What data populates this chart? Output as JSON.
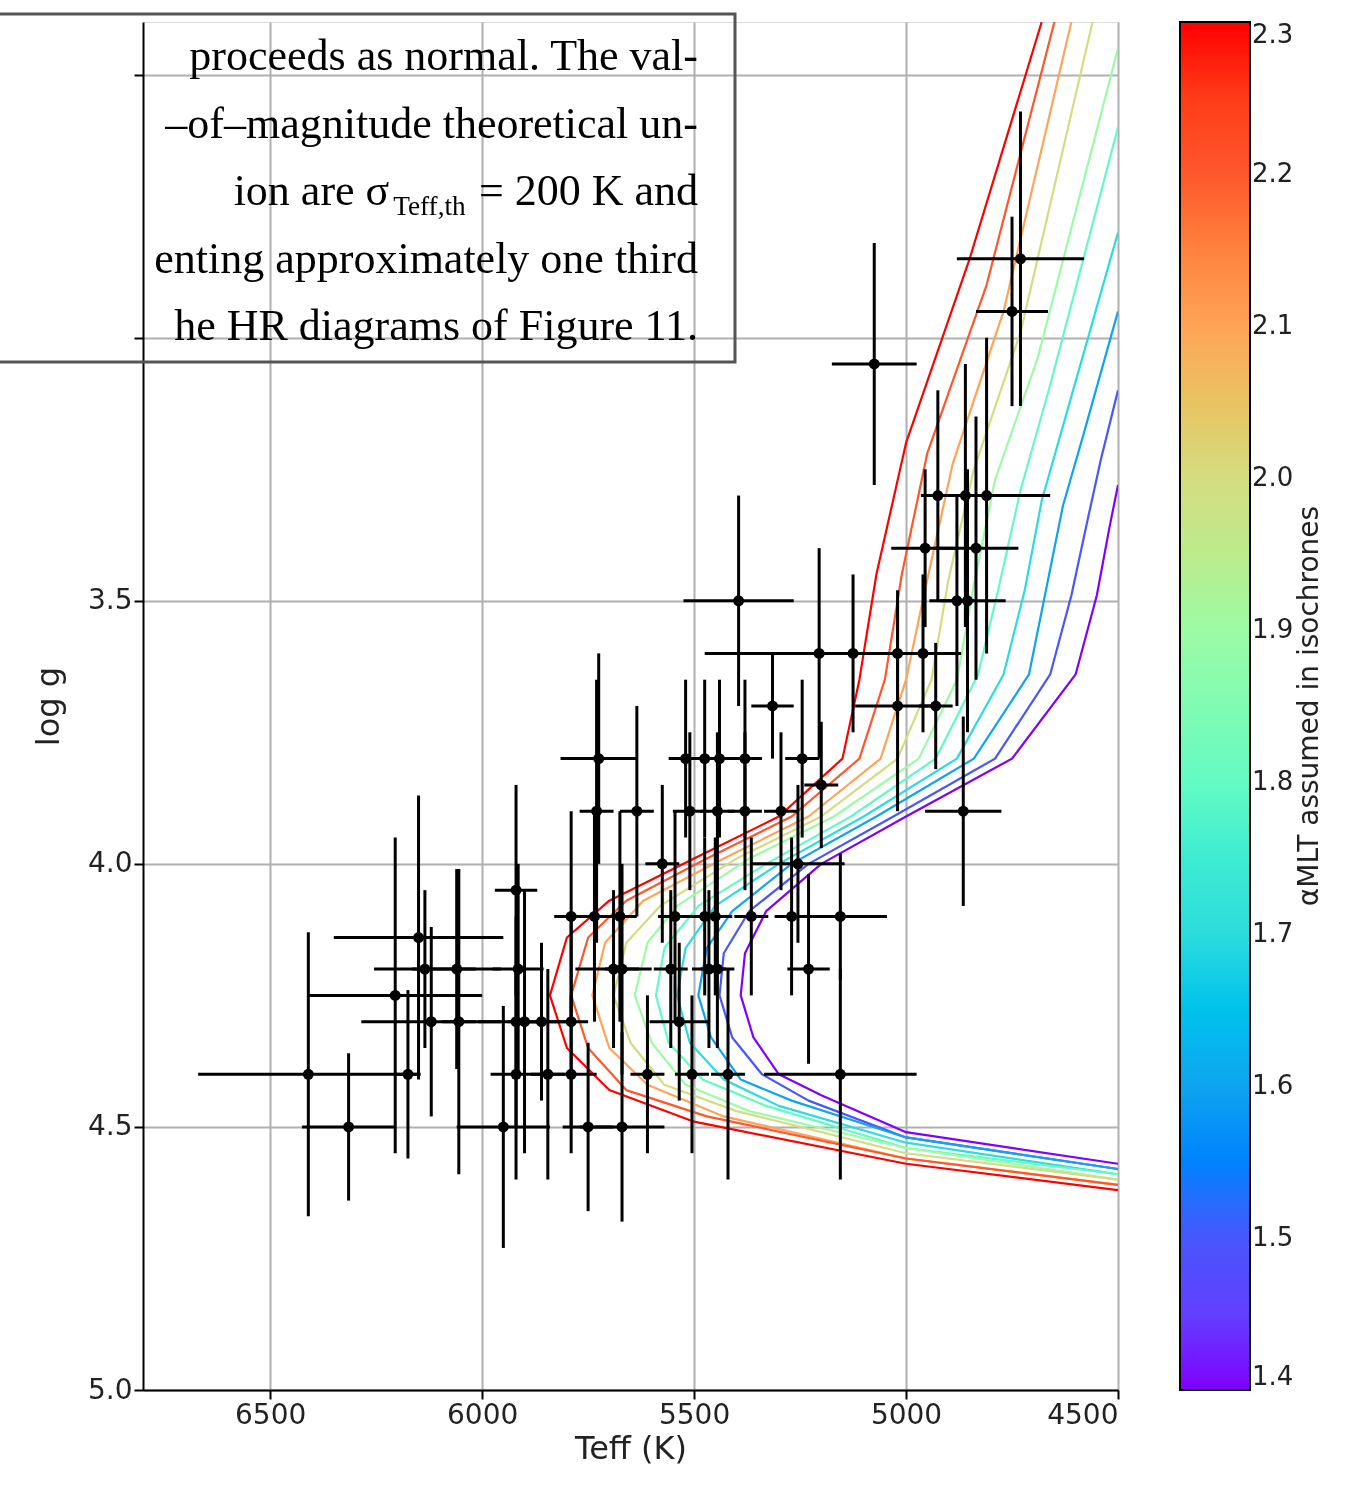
{
  "chart_data": {
    "type": "scatter",
    "xlabel": "Teff (K)",
    "ylabel": "log g",
    "clabel": "αMLT assumed in isochrones",
    "xlim": [
      6800,
      4500
    ],
    "xticks": [
      6500,
      6000,
      5500,
      5000,
      4500
    ],
    "ylim": [
      5.0,
      2.4
    ],
    "yticks": [
      {
        "value": 2.5,
        "label": null
      },
      {
        "value": 3.0,
        "label": null
      },
      3.5,
      {
        "value": 4,
        "label": "4.0"
      },
      4.5,
      {
        "value": 5,
        "label": "5.0"
      }
    ],
    "clim": [
      1.4,
      2.3
    ],
    "cticks": [
      1.4,
      1.5,
      1.6,
      1.7,
      1.8,
      1.9,
      {
        "value": 2,
        "label": "2.0"
      },
      2.1,
      2.2,
      2.3
    ],
    "grid": true,
    "annotations": [
      "proceeds as normal. The val-",
      "–of–magnitude theoretical un-",
      "ion are σ$_{Teff,th}$ = 200 K and",
      "enting approximately one third",
      "he HR diagrams of Figure 11."
    ],
    "series": [
      {
        "type": "line",
        "color": "#8000ff",
        "x": [
          4500,
          5000,
          5200,
          5300,
          5360,
          5390,
          5380,
          5330,
          5200,
          5000,
          4750,
          4600,
          4550,
          4520,
          4500
        ],
        "values": [
          4.57,
          4.51,
          4.44,
          4.4,
          4.33,
          4.25,
          4.17,
          4.09,
          4.0,
          3.91,
          3.8,
          3.64,
          3.49,
          3.36,
          3.28
        ]
      },
      {
        "type": "line",
        "color": "#4757fb",
        "x": [
          4500,
          5000,
          5230,
          5340,
          5410,
          5440,
          5430,
          5370,
          5230,
          5030,
          4790,
          4660,
          4610,
          4570,
          4540,
          4500
        ],
        "values": [
          4.58,
          4.52,
          4.45,
          4.4,
          4.33,
          4.25,
          4.17,
          4.09,
          4.0,
          3.91,
          3.8,
          3.64,
          3.49,
          3.34,
          3.23,
          3.1
        ]
      },
      {
        "type": "line",
        "color": "#0ea4f0",
        "x": [
          4500,
          5000,
          5270,
          5390,
          5460,
          5490,
          5470,
          5410,
          5270,
          5070,
          4840,
          4710,
          4670,
          4630,
          4580,
          4500
        ],
        "values": [
          4.58,
          4.52,
          4.45,
          4.41,
          4.33,
          4.25,
          4.16,
          4.09,
          4.0,
          3.91,
          3.8,
          3.64,
          3.48,
          3.32,
          3.18,
          2.95
        ]
      },
      {
        "type": "line",
        "color": "#2bdcdc",
        "x": [
          4500,
          5000,
          5300,
          5430,
          5510,
          5540,
          5520,
          5450,
          5300,
          5100,
          4880,
          4770,
          4720,
          4680,
          4620,
          4500
        ],
        "values": [
          4.59,
          4.53,
          4.46,
          4.41,
          4.34,
          4.25,
          4.16,
          4.08,
          4.0,
          3.91,
          3.8,
          3.64,
          3.48,
          3.31,
          3.14,
          2.8
        ]
      },
      {
        "type": "line",
        "color": "#63fbc3",
        "x": [
          4500,
          5000,
          5330,
          5480,
          5560,
          5590,
          5570,
          5490,
          5330,
          5130,
          4930,
          4830,
          4780,
          4730,
          4660,
          4500
        ],
        "values": [
          4.59,
          4.54,
          4.46,
          4.41,
          4.34,
          4.25,
          4.16,
          4.08,
          4.0,
          3.91,
          3.8,
          3.64,
          3.47,
          3.29,
          3.09,
          2.6
        ]
      },
      {
        "type": "line",
        "color": "#9cfba4",
        "x": [
          4500,
          5000,
          5370,
          5520,
          5600,
          5640,
          5610,
          5540,
          5370,
          5170,
          4970,
          4880,
          4840,
          4790,
          4690,
          4500
        ],
        "values": [
          4.6,
          4.54,
          4.47,
          4.42,
          4.34,
          4.25,
          4.15,
          4.08,
          3.99,
          3.91,
          3.8,
          3.65,
          3.47,
          3.27,
          3.04,
          2.45
        ]
      },
      {
        "type": "line",
        "color": "#d4dc80",
        "x": [
          4500,
          5000,
          5400,
          5570,
          5650,
          5690,
          5660,
          5580,
          5400,
          5200,
          5020,
          4940,
          4900,
          4840,
          4730,
          4560
        ],
        "values": [
          4.6,
          4.55,
          4.47,
          4.42,
          4.34,
          4.25,
          4.15,
          4.08,
          3.99,
          3.91,
          3.8,
          3.65,
          3.46,
          3.25,
          2.99,
          2.4
        ]
      },
      {
        "type": "line",
        "color": "#ffa457",
        "x": [
          4500,
          5000,
          5430,
          5610,
          5700,
          5740,
          5710,
          5620,
          5430,
          5230,
          5060,
          5000,
          4950,
          4890,
          4770,
          4610
        ],
        "values": [
          4.61,
          4.56,
          4.48,
          4.42,
          4.35,
          4.25,
          4.15,
          4.07,
          3.99,
          3.91,
          3.8,
          3.65,
          3.46,
          3.24,
          2.95,
          2.4
        ]
      },
      {
        "type": "line",
        "color": "#ff572c",
        "x": [
          4500,
          5000,
          5470,
          5660,
          5750,
          5790,
          5750,
          5660,
          5470,
          5270,
          5110,
          5050,
          5010,
          4950,
          4810,
          4650
        ],
        "values": [
          4.61,
          4.56,
          4.48,
          4.43,
          4.35,
          4.25,
          4.14,
          4.07,
          3.99,
          3.91,
          3.8,
          3.65,
          3.45,
          3.22,
          2.9,
          2.4
        ]
      },
      {
        "type": "line",
        "color": "#ff0000",
        "x": [
          4500,
          5000,
          5500,
          5700,
          5800,
          5840,
          5800,
          5700,
          5500,
          5300,
          5150,
          5110,
          5070,
          5000,
          4850,
          4680
        ],
        "values": [
          4.62,
          4.57,
          4.49,
          4.43,
          4.35,
          4.25,
          4.14,
          4.07,
          3.99,
          3.91,
          3.8,
          3.65,
          3.45,
          3.2,
          2.85,
          2.4
        ]
      },
      {
        "type": "scatter",
        "color": "#000000",
        "marker": "circle",
        "x": [
          6410,
          6315,
          6205,
          6175,
          6150,
          6135,
          6120,
          6060,
          6055,
          5920,
          5950,
          5920,
          5915,
          5920,
          5900,
          5860,
          5845,
          5790,
          5790,
          5790,
          5750,
          5670,
          5610,
          5505,
          5420,
          5155,
          5535,
          5690,
          5670,
          5555,
          5465,
          5445,
          5230,
          5735,
          5675,
          5545,
          5475,
          5450,
          5365,
          5270,
          5155,
          5575,
          5255,
          5730,
          5635,
          5510,
          5445,
          5380,
          5295,
          5725,
          5520,
          5475,
          5440,
          5380,
          5245,
          5200,
          5315,
          5020,
          4930,
          5205,
          5125,
          5020,
          4960,
          5395,
          4880,
          4855,
          4955,
          4835,
          4925,
          4860,
          4810,
          4865,
          5075,
          4750,
          4730
        ],
        "values": [
          4.4,
          4.5,
          4.25,
          4.4,
          4.14,
          4.2,
          4.3,
          4.2,
          4.3,
          4.05,
          4.5,
          4.4,
          4.2,
          4.3,
          4.3,
          4.3,
          4.4,
          4.4,
          4.3,
          4.1,
          4.5,
          4.5,
          4.4,
          4.4,
          4.4,
          4.4,
          4.3,
          4.2,
          4.2,
          4.2,
          4.2,
          4.2,
          4.2,
          4.1,
          4.1,
          4.1,
          4.1,
          4.1,
          4.1,
          4.1,
          4.1,
          4.0,
          4.0,
          3.9,
          3.9,
          3.9,
          3.9,
          3.9,
          3.9,
          3.8,
          3.8,
          3.8,
          3.8,
          3.8,
          3.8,
          3.85,
          3.7,
          3.7,
          3.7,
          3.6,
          3.6,
          3.6,
          3.6,
          3.5,
          3.5,
          3.5,
          3.4,
          3.4,
          3.3,
          3.3,
          3.3,
          3.9,
          3.05,
          2.95,
          2.85
        ],
        "xerrors": [
          260,
          110,
          205,
          30,
          200,
          120,
          165,
          105,
          40,
          50,
          110,
          60,
          60,
          90,
          40,
          60,
          40,
          60,
          40,
          40,
          60,
          100,
          40,
          40,
          40,
          180,
          70,
          90,
          40,
          40,
          40,
          40,
          50,
          40,
          40,
          40,
          40,
          40,
          40,
          40,
          110,
          40,
          110,
          40,
          40,
          40,
          40,
          40,
          40,
          90,
          40,
          40,
          40,
          40,
          40,
          40,
          50,
          100,
          40,
          270,
          40,
          40,
          90,
          130,
          40,
          90,
          80,
          100,
          40,
          40,
          150,
          90,
          100,
          85,
          150
        ],
        "errors": [
          0.27,
          0.14,
          0.3,
          0.16,
          0.27,
          0.15,
          0.18,
          0.19,
          0.29,
          0.2,
          0.23,
          0.2,
          0.2,
          0.2,
          0.25,
          0.15,
          0.2,
          0.15,
          0.2,
          0.2,
          0.16,
          0.18,
          0.15,
          0.15,
          0.2,
          0.2,
          0.15,
          0.15,
          0.2,
          0.15,
          0.15,
          0.15,
          0.18,
          0.2,
          0.2,
          0.2,
          0.15,
          0.15,
          0.15,
          0.15,
          0.12,
          0.15,
          0.15,
          0.25,
          0.2,
          0.15,
          0.15,
          0.15,
          0.15,
          0.2,
          0.15,
          0.15,
          0.15,
          0.15,
          0.15,
          0.12,
          0.1,
          0.2,
          0.12,
          0.2,
          0.15,
          0.12,
          0.15,
          0.2,
          0.2,
          0.25,
          0.15,
          0.25,
          0.2,
          0.25,
          0.3,
          0.18,
          0.23,
          0.18,
          0.28
        ]
      }
    ]
  }
}
